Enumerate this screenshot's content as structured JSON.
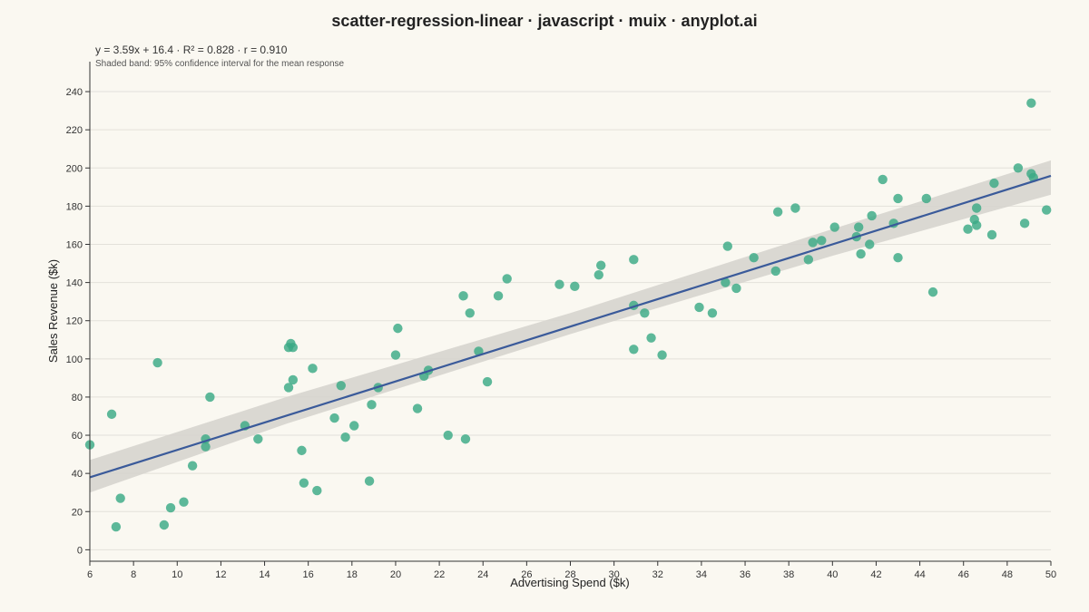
{
  "title": "scatter-regression-linear · javascript · muix · anyplot.ai",
  "annotation": "y = 3.59x + 16.4 · R² = 0.828 · r = 0.910",
  "band_note": "Shaded band: 95% confidence interval for the mean response",
  "colors": {
    "background": "#faf8f1",
    "points": "#3aa985",
    "regression_line": "#3a5a9a",
    "confidence_band": "#d6d4ce",
    "grid": "#e3e1da",
    "axis": "#333333"
  },
  "chart_data": {
    "type": "scatter",
    "xlabel": "Advertising Spend ($k)",
    "ylabel": "Sales Revenue ($k)",
    "xlim": [
      6,
      50
    ],
    "ylim": [
      -6,
      250
    ],
    "xticks": [
      6,
      8,
      10,
      12,
      14,
      16,
      18,
      20,
      22,
      24,
      26,
      28,
      30,
      32,
      34,
      36,
      38,
      40,
      42,
      44,
      46,
      48,
      50
    ],
    "yticks": [
      0,
      20,
      40,
      60,
      80,
      100,
      120,
      140,
      160,
      180,
      200,
      220,
      240
    ],
    "grid": "horizontal",
    "regression": {
      "slope": 3.59,
      "intercept": 16.4,
      "r_squared": 0.828,
      "r": 0.91
    },
    "confidence_band": {
      "x": [
        6,
        15,
        28,
        40,
        50
      ],
      "lower": [
        30,
        66,
        113,
        154,
        186
      ],
      "upper": [
        47,
        80,
        124,
        168,
        204
      ]
    },
    "points": [
      [
        6.0,
        55
      ],
      [
        7.0,
        71
      ],
      [
        7.2,
        12
      ],
      [
        7.4,
        27
      ],
      [
        9.1,
        98
      ],
      [
        9.4,
        13
      ],
      [
        9.7,
        22
      ],
      [
        10.3,
        25
      ],
      [
        10.7,
        44
      ],
      [
        11.3,
        58
      ],
      [
        11.3,
        54
      ],
      [
        11.5,
        80
      ],
      [
        13.1,
        65
      ],
      [
        13.7,
        58
      ],
      [
        15.1,
        106
      ],
      [
        15.2,
        108
      ],
      [
        15.3,
        106
      ],
      [
        15.1,
        85
      ],
      [
        15.3,
        89
      ],
      [
        15.7,
        52
      ],
      [
        15.8,
        35
      ],
      [
        16.2,
        95
      ],
      [
        16.4,
        31
      ],
      [
        17.2,
        69
      ],
      [
        17.5,
        86
      ],
      [
        17.7,
        59
      ],
      [
        18.1,
        65
      ],
      [
        18.8,
        36
      ],
      [
        18.9,
        76
      ],
      [
        19.2,
        85
      ],
      [
        20.0,
        102
      ],
      [
        20.1,
        116
      ],
      [
        21.0,
        74
      ],
      [
        21.3,
        91
      ],
      [
        21.5,
        94
      ],
      [
        22.4,
        60
      ],
      [
        23.1,
        133
      ],
      [
        23.2,
        58
      ],
      [
        23.4,
        124
      ],
      [
        23.8,
        104
      ],
      [
        24.2,
        88
      ],
      [
        24.7,
        133
      ],
      [
        25.1,
        142
      ],
      [
        27.5,
        139
      ],
      [
        28.2,
        138
      ],
      [
        29.3,
        144
      ],
      [
        29.4,
        149
      ],
      [
        30.9,
        152
      ],
      [
        30.9,
        128
      ],
      [
        30.9,
        105
      ],
      [
        31.4,
        124
      ],
      [
        31.7,
        111
      ],
      [
        32.2,
        102
      ],
      [
        33.9,
        127
      ],
      [
        34.5,
        124
      ],
      [
        35.1,
        140
      ],
      [
        35.2,
        159
      ],
      [
        35.6,
        137
      ],
      [
        36.4,
        153
      ],
      [
        37.4,
        146
      ],
      [
        37.5,
        177
      ],
      [
        38.3,
        179
      ],
      [
        38.9,
        152
      ],
      [
        39.1,
        161
      ],
      [
        39.5,
        162
      ],
      [
        40.1,
        169
      ],
      [
        41.1,
        164
      ],
      [
        41.2,
        169
      ],
      [
        41.3,
        155
      ],
      [
        41.7,
        160
      ],
      [
        41.8,
        175
      ],
      [
        42.3,
        194
      ],
      [
        42.8,
        171
      ],
      [
        43.0,
        184
      ],
      [
        43.0,
        153
      ],
      [
        44.3,
        184
      ],
      [
        44.6,
        135
      ],
      [
        46.2,
        168
      ],
      [
        46.5,
        173
      ],
      [
        46.6,
        170
      ],
      [
        46.6,
        179
      ],
      [
        47.3,
        165
      ],
      [
        47.4,
        192
      ],
      [
        48.5,
        200
      ],
      [
        48.8,
        171
      ],
      [
        49.1,
        234
      ],
      [
        49.1,
        197
      ],
      [
        49.2,
        195
      ],
      [
        49.8,
        178
      ]
    ]
  }
}
